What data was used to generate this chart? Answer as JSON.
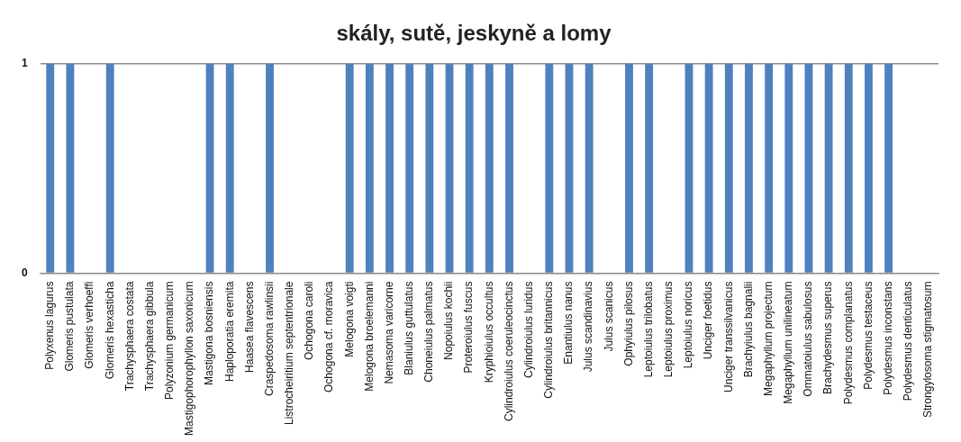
{
  "chart_data": {
    "type": "bar",
    "title": "skály, sutě, jeskyně a lomy",
    "categories": [
      "Polyxenus lagurus",
      "Glomeris pustulata",
      "Glomeris verhoeffi",
      "Glomeris hexasticha",
      "Trachysphaera costata",
      "Trachysphaera gibbula",
      "Polyzonium germanicum",
      "Mastigophorophyllon saxonicum",
      "Mastigona bosniensis",
      "Haploporatia eremita",
      "Haasea flavescens",
      "Craspedosoma rawlinsii",
      "Listrocheiritium septentrionale",
      "Ochogona caroli",
      "Ochogona cf. moravica",
      "Melogona voigti",
      "Melogona broelemanni",
      "Nemasoma varicorne",
      "Blaniulus guttulatus",
      "Choneiulus palmatus",
      "Nopoiulus kochii",
      "Proteroiulus fuscus",
      "Kryphioiulus occultus",
      "Cylindroiulus coeruleocinctus",
      "Cylindroiulus luridus",
      "Cylindroiulus britannicus",
      "Enantiulus nanus",
      "Julus scandinavius",
      "Julus scanicus",
      "Ophyiulus pilosus",
      "Leptoiulus trilobatus",
      "Leptoiulus proximus",
      "Leptoiulus noricus",
      "Unciger foetidus",
      "Unciger transsilvanicus",
      "Brachyiulus bagnalii",
      "Megaphyllum projectum",
      "Megaphyllum unilineatum",
      "Ommatoiulus sabulosus",
      "Brachydesmus superus",
      "Polydesmus complanatus",
      "Polydesmus testaceus",
      "Polydesmus inconstans",
      "Polydesmus denticulatus",
      "Strongylosoma stigmatosum"
    ],
    "values": [
      1,
      1,
      0,
      1,
      0,
      0,
      0,
      0,
      1,
      1,
      0,
      1,
      0,
      0,
      0,
      1,
      1,
      1,
      1,
      1,
      1,
      1,
      1,
      1,
      0,
      1,
      1,
      1,
      0,
      1,
      1,
      0,
      1,
      1,
      1,
      1,
      1,
      1,
      1,
      1,
      1,
      1,
      1,
      0,
      0
    ],
    "color": "#4f81bd",
    "ylim": [
      0,
      1
    ],
    "yticks": [
      0,
      1
    ],
    "grid": "y"
  }
}
